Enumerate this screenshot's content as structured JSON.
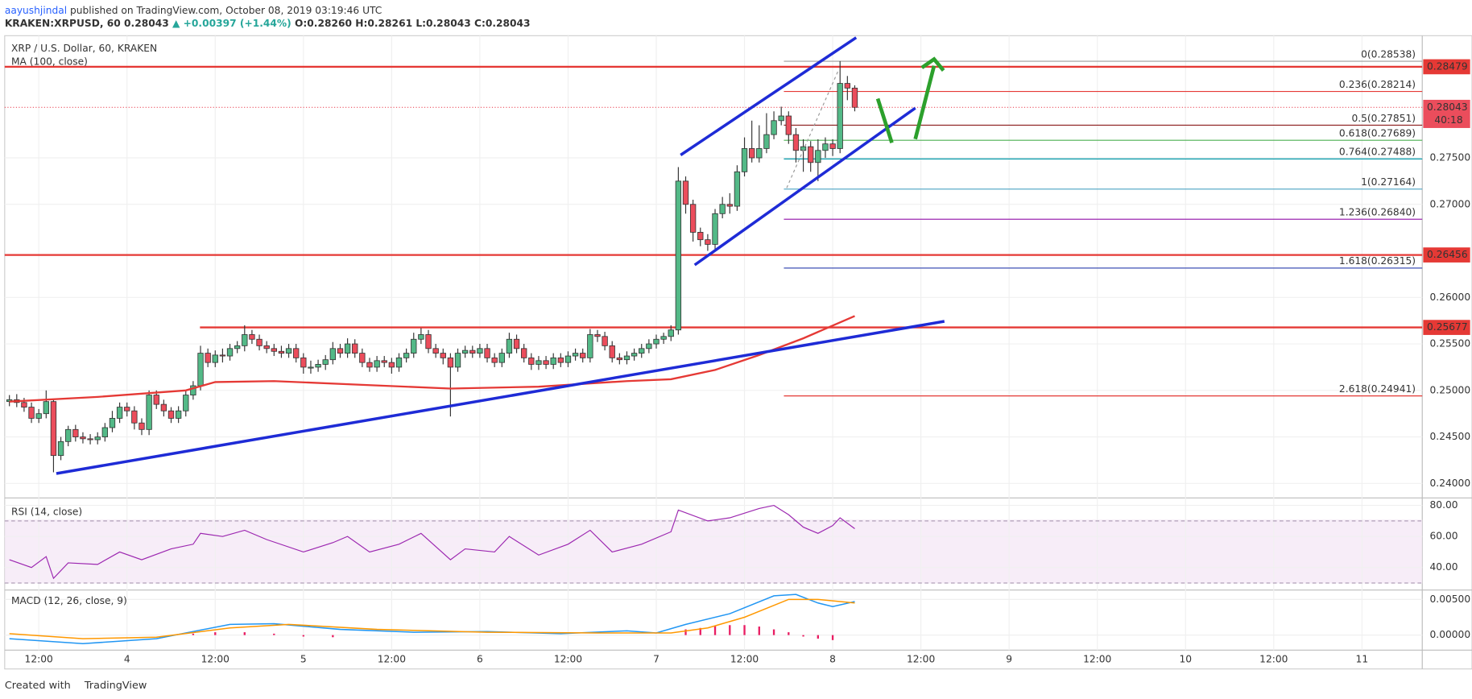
{
  "header": {
    "publisher": "aayushjindal",
    "published": "published on TradingView.com, October 08, 2019 03:19:46 UTC",
    "symbol": "KRAKEN:XRPUSD, 60",
    "last": "0.28043",
    "change": "▲ +0.00397 (+1.44%)",
    "ohlc": "O:0.28260 H:0.28261 L:0.28043 C:0.28043"
  },
  "footer": {
    "created": "Created with",
    "brand": "TradingView"
  },
  "chart_data": {
    "type": "candlestick",
    "title": "XRP / U.S. Dollar, 60, KRAKEN",
    "up_color": "#53b987",
    "down_color": "#eb4d5c",
    "grid": true,
    "xlim": [
      -0.64,
      192.2
    ],
    "xticks": [
      {
        "value": 4,
        "label": "12:00"
      },
      {
        "value": 16,
        "label": "4"
      },
      {
        "value": 28,
        "label": "12:00"
      },
      {
        "value": 40,
        "label": "5"
      },
      {
        "value": 52,
        "label": "12:00"
      },
      {
        "value": 64,
        "label": "6"
      },
      {
        "value": 76,
        "label": "12:00"
      },
      {
        "value": 88,
        "label": "7"
      },
      {
        "value": 100,
        "label": "12:00"
      },
      {
        "value": 112,
        "label": "8"
      },
      {
        "value": 124,
        "label": "12:00"
      },
      {
        "value": 136,
        "label": "9"
      },
      {
        "value": 148,
        "label": "12:00"
      },
      {
        "value": 160,
        "label": "10"
      },
      {
        "value": 172,
        "label": "12:00"
      },
      {
        "value": 184,
        "label": "11"
      }
    ],
    "ylim": [
      0.23844,
      0.28813
    ],
    "yticks": [
      {
        "value": 0.275,
        "label": "0.27500"
      },
      {
        "value": 0.27,
        "label": "0.27000"
      },
      {
        "value": 0.26,
        "label": "0.26000"
      },
      {
        "value": 0.255,
        "label": "0.25500"
      },
      {
        "value": 0.25,
        "label": "0.25000"
      },
      {
        "value": 0.245,
        "label": "0.24500"
      },
      {
        "value": 0.24,
        "label": "0.24000"
      }
    ],
    "open": [
      0.2488,
      0.249,
      0.2487,
      0.2482,
      0.247,
      0.2475,
      0.2488,
      0.243,
      0.2445,
      0.2458,
      0.245,
      0.2448,
      0.2447,
      0.245,
      0.246,
      0.247,
      0.2482,
      0.2478,
      0.2465,
      0.2458,
      0.2495,
      0.2485,
      0.2478,
      0.247,
      0.2478,
      0.2495,
      0.2505,
      0.254,
      0.253,
      0.2538,
      0.2537,
      0.2545,
      0.2548,
      0.256,
      0.2555,
      0.2548,
      0.2545,
      0.2542,
      0.254,
      0.2545,
      0.2535,
      0.2525,
      0.2525,
      0.2528,
      0.2533,
      0.2545,
      0.254,
      0.255,
      0.254,
      0.253,
      0.2525,
      0.2532,
      0.253,
      0.2525,
      0.2535,
      0.254,
      0.2555,
      0.256,
      0.2545,
      0.254,
      0.2535,
      0.2525,
      0.254,
      0.2543,
      0.254,
      0.2545,
      0.2535,
      0.253,
      0.254,
      0.2555,
      0.2545,
      0.2535,
      0.2528,
      0.2532,
      0.2528,
      0.2535,
      0.253,
      0.2537,
      0.254,
      0.2535,
      0.256,
      0.2558,
      0.2548,
      0.2535,
      0.2533,
      0.2537,
      0.254,
      0.2545,
      0.255,
      0.2555,
      0.2558,
      0.2565,
      0.2725,
      0.27,
      0.267,
      0.2662,
      0.2657,
      0.269,
      0.27,
      0.2698,
      0.2735,
      0.276,
      0.275,
      0.276,
      0.2775,
      0.279,
      0.2795,
      0.2775,
      0.2758,
      0.2762,
      0.2745,
      0.2758,
      0.2765,
      0.276,
      0.283,
      0.2825
    ],
    "high": [
      0.2495,
      0.2496,
      0.2492,
      0.2487,
      0.248,
      0.25,
      0.249,
      0.245,
      0.2462,
      0.2463,
      0.2455,
      0.2453,
      0.2455,
      0.2465,
      0.2478,
      0.2487,
      0.2487,
      0.2483,
      0.247,
      0.25,
      0.25,
      0.249,
      0.2482,
      0.2483,
      0.25,
      0.251,
      0.2548,
      0.2545,
      0.2543,
      0.2545,
      0.255,
      0.2553,
      0.257,
      0.2565,
      0.256,
      0.2553,
      0.255,
      0.2548,
      0.255,
      0.255,
      0.254,
      0.2532,
      0.2533,
      0.2538,
      0.2552,
      0.255,
      0.2556,
      0.2555,
      0.2545,
      0.2535,
      0.2537,
      0.2537,
      0.2535,
      0.254,
      0.2545,
      0.2562,
      0.2567,
      0.2565,
      0.255,
      0.2545,
      0.254,
      0.2545,
      0.2548,
      0.2548,
      0.255,
      0.255,
      0.254,
      0.2545,
      0.2562,
      0.256,
      0.255,
      0.254,
      0.2537,
      0.2537,
      0.254,
      0.254,
      0.2542,
      0.2545,
      0.2545,
      0.2566,
      0.2565,
      0.2563,
      0.2553,
      0.254,
      0.2542,
      0.2545,
      0.255,
      0.2555,
      0.256,
      0.2562,
      0.257,
      0.274,
      0.273,
      0.2705,
      0.2675,
      0.2668,
      0.2695,
      0.2708,
      0.2712,
      0.2742,
      0.2772,
      0.279,
      0.2785,
      0.2798,
      0.28,
      0.2805,
      0.28,
      0.2782,
      0.277,
      0.2768,
      0.277,
      0.2772,
      0.277,
      0.2854,
      0.2838,
      0.2828
    ],
    "low": [
      0.2483,
      0.2482,
      0.2477,
      0.2465,
      0.2465,
      0.247,
      0.2412,
      0.2425,
      0.244,
      0.2445,
      0.2443,
      0.2442,
      0.2442,
      0.2445,
      0.2455,
      0.2465,
      0.2472,
      0.2458,
      0.2452,
      0.2452,
      0.248,
      0.2472,
      0.2465,
      0.2465,
      0.2472,
      0.249,
      0.25,
      0.2525,
      0.2525,
      0.253,
      0.2532,
      0.254,
      0.2542,
      0.255,
      0.2543,
      0.254,
      0.2537,
      0.2535,
      0.2535,
      0.253,
      0.2518,
      0.2518,
      0.252,
      0.2522,
      0.2528,
      0.2535,
      0.2535,
      0.2535,
      0.2525,
      0.252,
      0.252,
      0.2525,
      0.2518,
      0.252,
      0.253,
      0.2535,
      0.255,
      0.254,
      0.2535,
      0.2528,
      0.2472,
      0.252,
      0.2535,
      0.2535,
      0.2535,
      0.253,
      0.2525,
      0.2525,
      0.2535,
      0.254,
      0.253,
      0.2522,
      0.2522,
      0.2523,
      0.2523,
      0.2525,
      0.2525,
      0.2532,
      0.253,
      0.253,
      0.2552,
      0.2543,
      0.253,
      0.2528,
      0.2528,
      0.2532,
      0.2535,
      0.254,
      0.2545,
      0.255,
      0.2553,
      0.256,
      0.269,
      0.266,
      0.2655,
      0.265,
      0.2652,
      0.2685,
      0.269,
      0.2693,
      0.273,
      0.2745,
      0.2745,
      0.2755,
      0.277,
      0.2785,
      0.2765,
      0.2745,
      0.2735,
      0.2735,
      0.2725,
      0.275,
      0.2752,
      0.2755,
      0.2812,
      0.28
    ],
    "close": [
      0.249,
      0.2487,
      0.2482,
      0.247,
      0.2475,
      0.2488,
      0.243,
      0.2445,
      0.2458,
      0.245,
      0.2448,
      0.2447,
      0.245,
      0.246,
      0.247,
      0.2482,
      0.2478,
      0.2465,
      0.2458,
      0.2495,
      0.2485,
      0.2478,
      0.247,
      0.2478,
      0.2495,
      0.2505,
      0.254,
      0.253,
      0.2538,
      0.2537,
      0.2545,
      0.2548,
      0.256,
      0.2555,
      0.2548,
      0.2545,
      0.2542,
      0.254,
      0.2545,
      0.2535,
      0.2525,
      0.2525,
      0.2528,
      0.2533,
      0.2545,
      0.254,
      0.255,
      0.254,
      0.253,
      0.2525,
      0.2532,
      0.253,
      0.2525,
      0.2535,
      0.254,
      0.2555,
      0.256,
      0.2545,
      0.254,
      0.2535,
      0.2525,
      0.254,
      0.2543,
      0.254,
      0.2545,
      0.2535,
      0.253,
      0.254,
      0.2555,
      0.2545,
      0.2535,
      0.2528,
      0.2532,
      0.2528,
      0.2535,
      0.253,
      0.2537,
      0.254,
      0.2535,
      0.256,
      0.2558,
      0.2548,
      0.2535,
      0.2533,
      0.2537,
      0.254,
      0.2545,
      0.255,
      0.2555,
      0.2558,
      0.2565,
      0.2725,
      0.27,
      0.267,
      0.2662,
      0.2657,
      0.269,
      0.27,
      0.2698,
      0.2735,
      0.276,
      0.275,
      0.276,
      0.2775,
      0.279,
      0.2795,
      0.2775,
      0.2758,
      0.2762,
      0.2745,
      0.2758,
      0.2765,
      0.276,
      0.283,
      0.2825,
      0.28043
    ],
    "ma": {
      "name": "MA (100, close)",
      "color": "#e53935",
      "x": [
        0,
        12,
        24,
        28,
        36,
        48,
        60,
        72,
        84,
        90,
        96,
        102,
        108,
        115
      ],
      "values": [
        0.2488,
        0.2493,
        0.25,
        0.2509,
        0.251,
        0.2506,
        0.2502,
        0.2504,
        0.251,
        0.2512,
        0.2522,
        0.2538,
        0.2556,
        0.258
      ]
    },
    "hlines": [
      {
        "value": 0.28479,
        "color": "#e53935"
      },
      {
        "value": 0.26456,
        "color": "#e53935"
      },
      {
        "value": 0.25677,
        "color": "#e53935"
      }
    ],
    "last_price": 0.28043,
    "countdown": "40:18",
    "fib": [
      {
        "text": "0(0.28538)",
        "value": 0.28538,
        "color": "#9e9e9e"
      },
      {
        "text": "0.236(0.28214)",
        "value": 0.28214,
        "color": "#e53935"
      },
      {
        "text": "0.5(0.27851)",
        "value": 0.27851,
        "color": "#8b1a1a"
      },
      {
        "text": "0.618(0.27689)",
        "value": 0.27689,
        "color": "#4caf50"
      },
      {
        "text": "0.764(0.27488)",
        "value": 0.27488,
        "color": "#0097a7"
      },
      {
        "text": "1(0.27164)",
        "value": 0.27164,
        "color": "#4aa3c4"
      },
      {
        "text": "1.236(0.26840)",
        "value": 0.2684,
        "color": "#9c27b0"
      },
      {
        "text": "1.618(0.26315)",
        "value": 0.26315,
        "color": "#3f51b5"
      },
      {
        "text": "2.618(0.24941)",
        "value": 0.24941,
        "color": "#e53935"
      }
    ],
    "rsi": {
      "title": "RSI (14, close)",
      "color": "#9c27b0",
      "ylim": [
        25.5,
        84.8
      ],
      "yticks": [
        {
          "value": 80,
          "label": "80.00"
        },
        {
          "value": 60,
          "label": "60.00"
        },
        {
          "value": 40,
          "label": "40.00"
        }
      ],
      "levels": [
        70,
        30
      ],
      "x": [
        0,
        3,
        5,
        6,
        8,
        12,
        15,
        18,
        22,
        25,
        26,
        29,
        32,
        35,
        40,
        44,
        46,
        49,
        53,
        56,
        60,
        62,
        66,
        68,
        72,
        76,
        79,
        82,
        86,
        90,
        91,
        95,
        98,
        102,
        104,
        106,
        108,
        110,
        112,
        113,
        115
      ],
      "values": [
        45,
        40,
        47,
        33,
        43,
        42,
        50,
        45,
        52,
        55,
        62,
        60,
        64,
        58,
        50,
        56,
        60,
        50,
        55,
        62,
        45,
        52,
        50,
        60,
        48,
        55,
        64,
        50,
        55,
        63,
        77,
        70,
        72,
        78,
        80,
        74,
        66,
        62,
        67,
        72,
        65
      ]
    },
    "macd": {
      "title": "MACD (12, 26, close, 9)",
      "ylim": [
        -0.00211,
        0.00632
      ],
      "yticks": [
        {
          "value": 0.005,
          "label": "0.00500"
        },
        {
          "value": 0,
          "label": "0.00000"
        }
      ],
      "macd": {
        "color": "#2196f3",
        "x": [
          0,
          10,
          20,
          30,
          36,
          45,
          55,
          65,
          75,
          84,
          88,
          92,
          98,
          104,
          107,
          110,
          112,
          115
        ],
        "values": [
          -0.0005,
          -0.0012,
          -0.0005,
          0.0015,
          0.0016,
          0.0008,
          0.0004,
          0.0005,
          0.0002,
          0.0006,
          0.0003,
          0.0015,
          0.003,
          0.0055,
          0.0057,
          0.0045,
          0.004,
          0.0047
        ]
      },
      "signal": {
        "color": "#ff9800",
        "x": [
          0,
          10,
          20,
          30,
          38,
          50,
          65,
          80,
          90,
          95,
          100,
          106,
          110,
          115
        ],
        "values": [
          0.0002,
          -0.0005,
          -0.0003,
          0.001,
          0.0015,
          0.0008,
          0.0004,
          0.0003,
          0.0003,
          0.001,
          0.0025,
          0.005,
          0.005,
          0.0045
        ]
      },
      "histogram": {
        "color": "#e91e63",
        "x": [
          25,
          28,
          32,
          36,
          40,
          44,
          92,
          94,
          96,
          98,
          100,
          102,
          104,
          106,
          108,
          110,
          112
        ],
        "values": [
          0.0002,
          0.0004,
          0.0004,
          0.0002,
          -0.0002,
          -0.0003,
          0.0008,
          0.001,
          0.0013,
          0.0014,
          0.0014,
          0.0012,
          0.0008,
          0.0004,
          -0.0002,
          -0.0005,
          -0.0007
        ]
      }
    }
  }
}
